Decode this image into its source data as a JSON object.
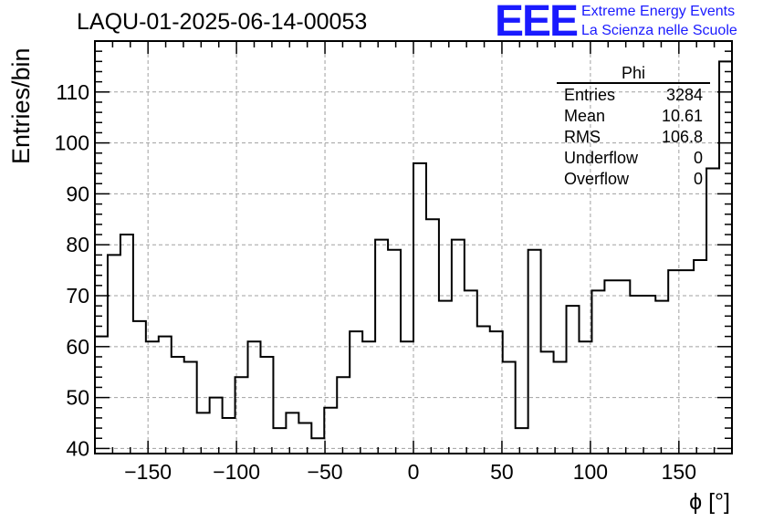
{
  "title": "LAQU-01-2025-06-14-00053",
  "logo": {
    "mark": "EEE",
    "line1": "Extreme Energy Events",
    "line2": "La Scienza nelle Scuole"
  },
  "colors": {
    "logo": "#1a1aff",
    "histogram": "#000000",
    "grid": "#a0a0a0"
  },
  "stats": {
    "title": "Phi",
    "rows": [
      {
        "key": "Entries",
        "value": "3284"
      },
      {
        "key": "Mean",
        "value": "10.61"
      },
      {
        "key": "RMS",
        "value": "106.8"
      },
      {
        "key": "Underflow",
        "value": "0"
      },
      {
        "key": "Overflow",
        "value": "0"
      }
    ]
  },
  "chart_data": {
    "type": "bar",
    "style": "step-histogram",
    "title": "LAQU-01-2025-06-14-00053",
    "xlabel": "ϕ [°]",
    "ylabel": "Entries/bin",
    "xlim": [
      -180,
      180
    ],
    "ylim": [
      39,
      120
    ],
    "grid": true,
    "legend": "top-right",
    "x_ticks": [
      -150,
      -100,
      -50,
      0,
      50,
      100,
      150
    ],
    "y_ticks": [
      40,
      50,
      60,
      70,
      80,
      90,
      100,
      110
    ],
    "bin_width": 7.2,
    "values": [
      62,
      78,
      82,
      65,
      61,
      62,
      58,
      57,
      47,
      50,
      46,
      54,
      61,
      58,
      44,
      47,
      45,
      42,
      48,
      54,
      63,
      61,
      81,
      79,
      61,
      96,
      85,
      69,
      81,
      71,
      64,
      63,
      57,
      44,
      79,
      59,
      57,
      68,
      61,
      71,
      73,
      73,
      70,
      70,
      69,
      75,
      75,
      77,
      95,
      116
    ]
  }
}
